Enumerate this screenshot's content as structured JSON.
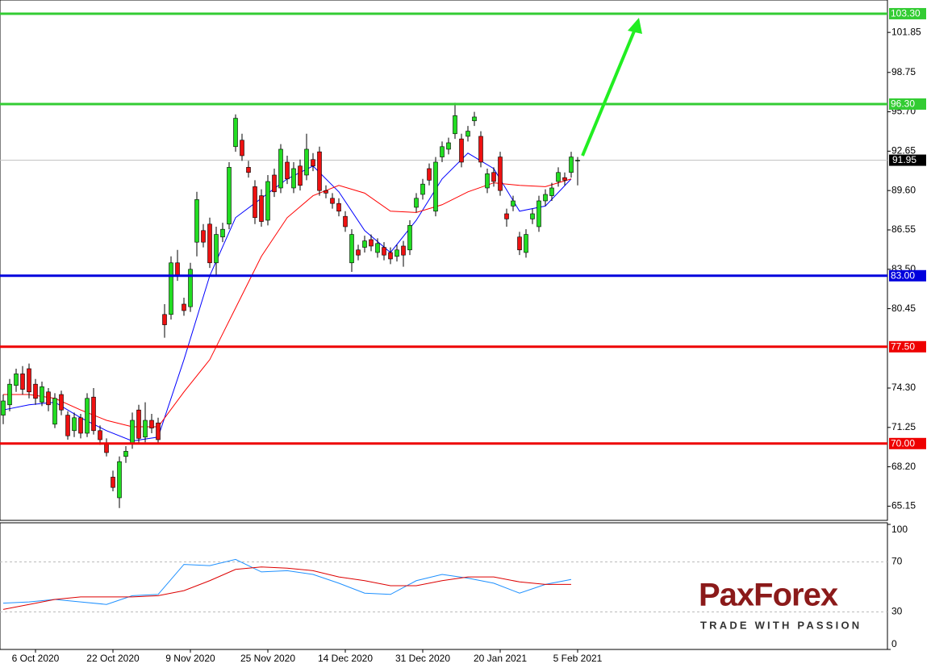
{
  "chart_data": [
    {
      "type": "candlestick",
      "categories": [
        null,
        null,
        null,
        null,
        null,
        "6 Oct 2020",
        null,
        null,
        null,
        null,
        null,
        null,
        null,
        null,
        null,
        null,
        null,
        "22 Oct 2020",
        null,
        null,
        null,
        null,
        null,
        null,
        null,
        null,
        null,
        null,
        null,
        "9 Nov 2020",
        null,
        null,
        null,
        null,
        null,
        null,
        null,
        null,
        null,
        null,
        null,
        "25 Nov 2020",
        null,
        null,
        null,
        null,
        null,
        null,
        null,
        null,
        null,
        null,
        null,
        "14 Dec 2020",
        null,
        null,
        null,
        null,
        null,
        null,
        null,
        null,
        null,
        null,
        null,
        "31 Dec 2020",
        null,
        null,
        null,
        null,
        null,
        null,
        null,
        null,
        null,
        null,
        null,
        "20 Jan 2021",
        null,
        null,
        null,
        null,
        null,
        null,
        null,
        null,
        null,
        null,
        null,
        "5 Feb 2021"
      ],
      "open": [
        72.2,
        73.0,
        74.5,
        75.4,
        75.8,
        74.6,
        73.2,
        74.0,
        71.5,
        73.8,
        72.2,
        71.0,
        72.0,
        70.8,
        73.6,
        71.0,
        70.0,
        67.4,
        65.8,
        69.0,
        70.0,
        72.6,
        70.5,
        71.8,
        71.6,
        80.0,
        80.0,
        84.0,
        80.8,
        80.6,
        85.6,
        86.5,
        87.0,
        84.0,
        86.0,
        87.0,
        93.0,
        93.5,
        91.4,
        89.9,
        89.2,
        87.3,
        90.8,
        89.8,
        91.8,
        89.8,
        91.5,
        90.8,
        92.0,
        92.6,
        89.6,
        89.0,
        88.6,
        87.6,
        84.0,
        85.0,
        85.2,
        85.8,
        84.8,
        85.2,
        84.8,
        84.5,
        85.3,
        85.0,
        88.3,
        89.3,
        91.3,
        88.0,
        92.2,
        92.8,
        94.0,
        93.6,
        93.8,
        95.0,
        93.8,
        89.8,
        91.0,
        92.2,
        87.8,
        88.4,
        86.0,
        84.8,
        87.4,
        86.8,
        88.8,
        89.2,
        90.3,
        90.6,
        91.0,
        91.95
      ],
      "high": [
        73.8,
        75.0,
        75.8,
        76.0,
        76.2,
        75.0,
        74.8,
        74.3,
        73.9,
        74.1,
        72.5,
        72.4,
        72.3,
        73.9,
        74.3,
        71.4,
        70.4,
        67.9,
        69.0,
        69.8,
        72.4,
        73.0,
        73.2,
        72.3,
        72.0,
        80.8,
        84.5,
        85.0,
        81.3,
        84.0,
        89.5,
        87.0,
        87.5,
        86.8,
        87.1,
        91.8,
        95.5,
        94.0,
        91.9,
        90.4,
        89.7,
        90.8,
        91.3,
        93.2,
        92.3,
        91.8,
        92.0,
        94.0,
        92.5,
        93.0,
        90.0,
        89.4,
        89.0,
        88.0,
        86.6,
        85.4,
        86.1,
        86.2,
        85.9,
        85.6,
        85.2,
        85.4,
        85.7,
        87.3,
        89.4,
        90.5,
        91.7,
        92.2,
        93.4,
        93.7,
        96.4,
        94.0,
        94.6,
        95.7,
        94.2,
        91.3,
        91.4,
        92.6,
        88.2,
        89.2,
        86.4,
        86.6,
        88.2,
        89.2,
        89.7,
        90.2,
        91.4,
        91.0,
        92.6,
        92.2
      ],
      "low": [
        71.5,
        72.5,
        74.0,
        73.8,
        73.5,
        73.0,
        72.9,
        72.5,
        71.2,
        72.2,
        70.3,
        70.5,
        70.4,
        70.5,
        70.7,
        69.9,
        69.0,
        66.3,
        65.0,
        68.5,
        69.6,
        70.0,
        70.1,
        70.8,
        70.0,
        78.2,
        79.6,
        82.6,
        79.9,
        80.2,
        84.5,
        85.2,
        83.6,
        83.0,
        85.6,
        86.6,
        92.6,
        91.9,
        90.6,
        87.0,
        86.8,
        86.9,
        89.1,
        89.4,
        90.1,
        89.4,
        89.6,
        90.4,
        91.1,
        89.2,
        89.0,
        88.2,
        87.6,
        86.4,
        83.3,
        84.2,
        84.8,
        84.9,
        84.4,
        84.2,
        83.9,
        84.1,
        83.7,
        84.6,
        87.9,
        88.9,
        90.0,
        87.6,
        91.8,
        92.4,
        93.6,
        91.4,
        93.4,
        94.6,
        91.4,
        89.4,
        89.9,
        89.2,
        86.8,
        88.0,
        84.6,
        84.4,
        87.0,
        86.4,
        88.4,
        88.8,
        89.9,
        90.0,
        90.6,
        90.0
      ],
      "close": [
        73.3,
        74.6,
        75.4,
        74.2,
        74.0,
        73.5,
        74.4,
        73.0,
        73.5,
        72.6,
        70.6,
        72.0,
        70.8,
        73.5,
        71.0,
        70.3,
        69.3,
        66.6,
        68.6,
        69.4,
        71.8,
        70.4,
        71.8,
        71.2,
        70.3,
        79.2,
        84.0,
        83.0,
        80.3,
        83.5,
        88.9,
        85.6,
        84.0,
        86.2,
        86.6,
        91.4,
        95.2,
        92.3,
        91.0,
        87.5,
        87.2,
        90.3,
        89.5,
        92.8,
        90.5,
        91.3,
        90.0,
        92.8,
        91.5,
        89.6,
        89.4,
        88.6,
        88.0,
        86.8,
        86.2,
        84.6,
        85.7,
        85.3,
        85.5,
        84.6,
        84.3,
        85.0,
        84.6,
        86.9,
        89.0,
        90.1,
        90.4,
        91.8,
        93.0,
        93.3,
        95.4,
        91.8,
        94.2,
        95.3,
        91.8,
        90.9,
        90.3,
        89.6,
        87.4,
        88.8,
        85.0,
        86.2,
        87.8,
        88.8,
        89.3,
        89.8,
        91.0,
        90.4,
        92.2,
        91.95
      ],
      "up_color": "#22dd22",
      "down_color": "#ee1111",
      "series": [
        {
          "color": "#0000ff",
          "x": [
            0,
            4,
            8,
            12,
            16,
            20,
            24,
            28,
            32,
            36,
            40,
            44,
            48,
            52,
            56,
            60,
            64,
            68,
            72,
            76,
            80,
            84,
            88
          ],
          "values": [
            72.6,
            73.0,
            73.2,
            72.0,
            71.0,
            70.2,
            70.5,
            76.5,
            83.0,
            87.5,
            89.0,
            90.5,
            91.5,
            89.5,
            86.5,
            84.8,
            87.3,
            90.5,
            92.5,
            91.3,
            88.0,
            88.4,
            90.5
          ]
        },
        {
          "color": "#ff0000",
          "x": [
            0,
            4,
            8,
            12,
            16,
            20,
            24,
            28,
            32,
            36,
            40,
            44,
            48,
            52,
            56,
            60,
            64,
            68,
            72,
            76,
            80,
            84,
            88
          ],
          "values": [
            73.8,
            73.8,
            73.5,
            72.6,
            71.8,
            71.3,
            71.3,
            74.0,
            76.5,
            80.5,
            84.5,
            87.5,
            89.2,
            90.0,
            89.4,
            88.0,
            87.9,
            88.5,
            89.5,
            90.2,
            90.0,
            89.9,
            90.5
          ]
        }
      ],
      "ylim": [
        64.05,
        104.36
      ],
      "yticks": [
        65.15,
        {
          "value": 68.2,
          "label": "68.20"
        },
        71.25,
        {
          "value": 74.3,
          "label": "74.30"
        },
        80.45,
        {
          "value": 83.5,
          "label": "83.50"
        },
        86.55,
        {
          "value": 89.6,
          "label": "89.60"
        },
        92.65,
        {
          "value": 95.7,
          "label": "95.70"
        },
        98.75,
        101.85
      ],
      "levels": [
        {
          "value": 103.3,
          "label": "103.30",
          "color": "#33cc33"
        },
        {
          "value": 96.3,
          "label": "96.30",
          "color": "#33cc33"
        },
        {
          "value": 83.0,
          "label": "83.00",
          "color": "#0000dd"
        },
        {
          "value": 77.5,
          "label": "77.50",
          "color": "#ee0000"
        },
        {
          "value": 70.0,
          "label": "70.00",
          "color": "#ee0000"
        }
      ],
      "current": {
        "value": 91.95,
        "label": "91.95"
      }
    },
    {
      "type": "line",
      "series": [
        {
          "color": "#1e90ff",
          "x": [
            0,
            4,
            8,
            12,
            16,
            20,
            24,
            28,
            32,
            36,
            40,
            44,
            48,
            52,
            56,
            60,
            64,
            68,
            72,
            76,
            80,
            84,
            88
          ],
          "values": [
            37,
            38,
            40,
            38,
            36,
            43,
            44,
            68,
            67,
            72,
            62,
            63,
            60,
            53,
            45,
            44,
            55,
            60,
            57,
            53,
            45,
            52,
            56
          ]
        },
        {
          "color": "#dd0000",
          "x": [
            0,
            4,
            8,
            12,
            16,
            20,
            24,
            28,
            32,
            36,
            40,
            44,
            48,
            52,
            56,
            60,
            64,
            68,
            72,
            76,
            80,
            84,
            88
          ],
          "values": [
            32,
            36,
            40,
            42,
            42,
            42,
            43,
            47,
            55,
            64,
            66,
            65,
            63,
            58,
            55,
            51,
            51,
            55,
            58,
            58,
            54,
            52,
            52
          ]
        }
      ],
      "ylim": [
        0,
        100
      ],
      "yticks": [
        0,
        30,
        70,
        100
      ]
    }
  ],
  "watermark": {
    "brand": "PaxForex",
    "tagline": "TRADE WITH PASSION"
  }
}
